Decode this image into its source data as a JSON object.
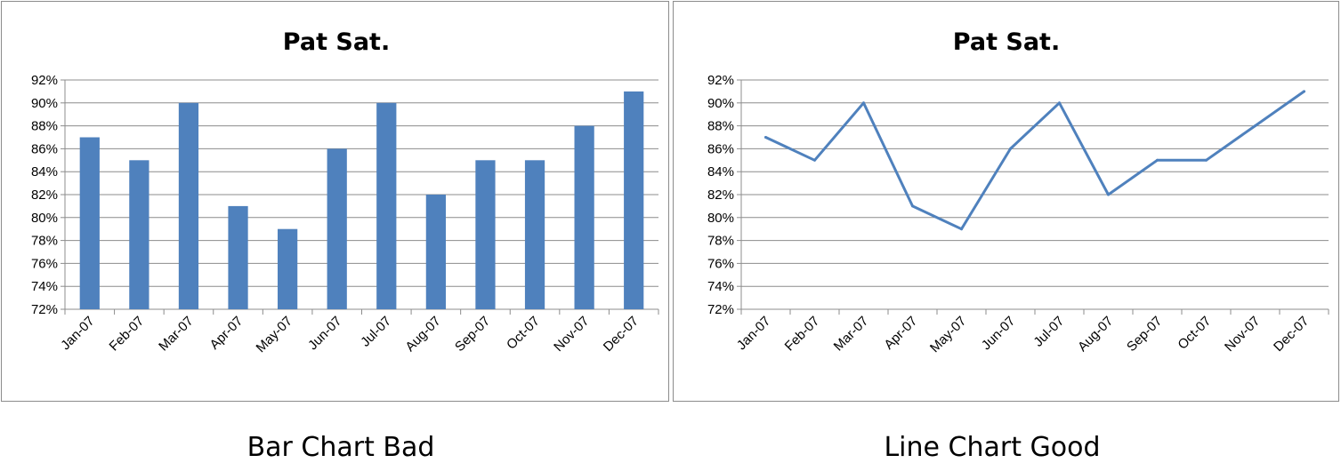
{
  "captions": {
    "left": "Bar Chart Bad",
    "right": "Line Chart Good"
  },
  "colors": {
    "series": "#4f81bd",
    "grid": "#8c8c8c",
    "axis": "#8c8c8c",
    "border": "#8c8c8c"
  },
  "chart_data": [
    {
      "type": "bar",
      "title": "Pat Sat.",
      "categories": [
        "Jan-07",
        "Feb-07",
        "Mar-07",
        "Apr-07",
        "May-07",
        "Jun-07",
        "Jul-07",
        "Aug-07",
        "Sep-07",
        "Oct-07",
        "Nov-07",
        "Dec-07"
      ],
      "values": [
        87,
        85,
        90,
        81,
        79,
        86,
        90,
        82,
        85,
        85,
        88,
        91
      ],
      "yticks": [
        "72%",
        "74%",
        "76%",
        "78%",
        "80%",
        "82%",
        "84%",
        "86%",
        "88%",
        "90%",
        "92%"
      ],
      "ylim": [
        72,
        92
      ],
      "grid": true,
      "legend": "none"
    },
    {
      "type": "line",
      "title": "Pat Sat.",
      "categories": [
        "Jan-07",
        "Feb-07",
        "Mar-07",
        "Apr-07",
        "May-07",
        "Jun-07",
        "Jul-07",
        "Aug-07",
        "Sep-07",
        "Oct-07",
        "Nov-07",
        "Dec-07"
      ],
      "values": [
        87,
        85,
        90,
        81,
        79,
        86,
        90,
        82,
        85,
        85,
        88,
        91
      ],
      "yticks": [
        "72%",
        "74%",
        "76%",
        "78%",
        "80%",
        "82%",
        "84%",
        "86%",
        "88%",
        "90%",
        "92%"
      ],
      "ylim": [
        72,
        92
      ],
      "grid": true,
      "legend": "none"
    }
  ]
}
